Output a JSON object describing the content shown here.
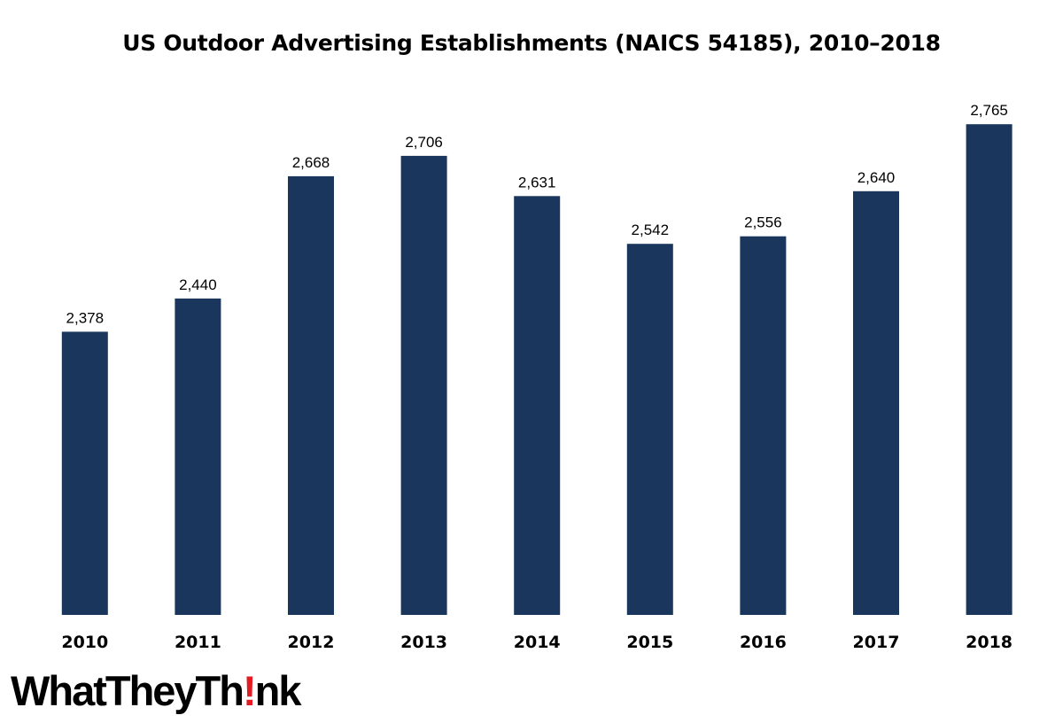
{
  "chart_data": {
    "type": "bar",
    "title": "US Outdoor Advertising Establishments (NAICS 54185), 2010–2018",
    "categories": [
      "2010",
      "2011",
      "2012",
      "2013",
      "2014",
      "2015",
      "2016",
      "2017",
      "2018"
    ],
    "values": [
      2378,
      2440,
      2668,
      2706,
      2631,
      2542,
      2556,
      2640,
      2765
    ],
    "data_labels": [
      "2,378",
      "2,440",
      "2,668",
      "2,706",
      "2,631",
      "2,542",
      "2,556",
      "2,640",
      "2,765"
    ],
    "xlabel": "",
    "ylabel": "",
    "ylim": [
      1850,
      2800
    ],
    "grid": false,
    "legend": "none",
    "bar_color": "#1b365d"
  },
  "logo": {
    "text_before": "WhatTheyTh",
    "text_bang": "!",
    "text_after": "nk",
    "accent_color": "#e31b23"
  }
}
